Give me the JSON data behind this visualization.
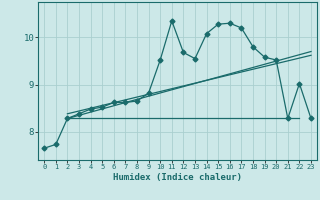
{
  "xlabel": "Humidex (Indice chaleur)",
  "bg_color": "#cce8e8",
  "grid_color": "#aacfcf",
  "line_color": "#1a6b6b",
  "xlim": [
    -0.5,
    23.5
  ],
  "ylim": [
    7.4,
    10.75
  ],
  "yticks": [
    8,
    9,
    10
  ],
  "xticks": [
    0,
    1,
    2,
    3,
    4,
    5,
    6,
    7,
    8,
    9,
    10,
    11,
    12,
    13,
    14,
    15,
    16,
    17,
    18,
    19,
    20,
    21,
    22,
    23
  ],
  "main_line_x": [
    0,
    1,
    2,
    3,
    4,
    5,
    6,
    7,
    8,
    9,
    10,
    11,
    12,
    13,
    14,
    15,
    16,
    17,
    18,
    19,
    20,
    21,
    22,
    23
  ],
  "main_line_y": [
    7.65,
    7.73,
    8.28,
    8.38,
    8.48,
    8.52,
    8.62,
    8.62,
    8.65,
    8.82,
    9.52,
    10.35,
    9.68,
    9.55,
    10.08,
    10.28,
    10.3,
    10.2,
    9.8,
    9.58,
    9.52,
    8.28,
    9.02,
    8.28
  ],
  "flat_line_x": [
    2,
    22
  ],
  "flat_line_y": [
    8.28,
    8.28
  ],
  "reg_line_x": [
    2,
    23
  ],
  "reg_line_y": [
    8.28,
    9.7
  ],
  "reg_line2_x": [
    2,
    23
  ],
  "reg_line2_y": [
    8.38,
    9.62
  ]
}
